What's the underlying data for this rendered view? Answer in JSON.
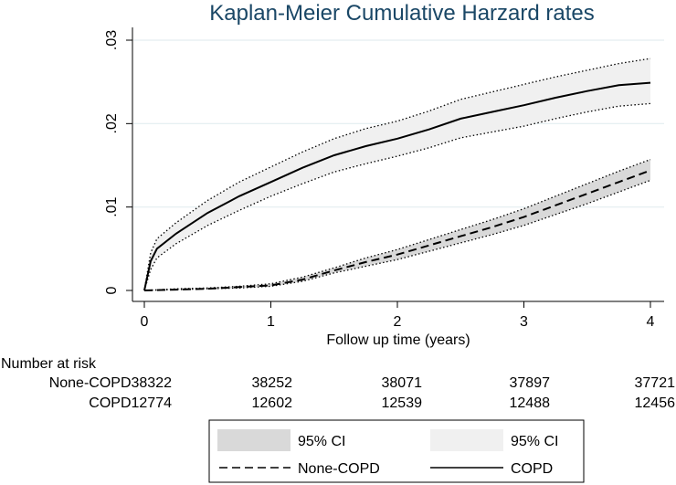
{
  "chart_data": {
    "type": "line",
    "title": "Kaplan-Meier Cumulative Harzard rates",
    "xlabel": "Follow up time (years)",
    "ylabel": "",
    "xlim": [
      0,
      4
    ],
    "ylim": [
      0,
      0.03
    ],
    "x_ticks": [
      0,
      1,
      2,
      3,
      4
    ],
    "x_tick_labels": [
      "0",
      "1",
      "2",
      "3",
      "4"
    ],
    "y_ticks": [
      0,
      0.01,
      0.02,
      0.03
    ],
    "y_tick_labels": [
      "0",
      ".01",
      ".02",
      ".03"
    ],
    "grid": "horizontal",
    "legend_position": "bottom",
    "series": [
      {
        "name": "None-COPD",
        "line_style": "dashed",
        "color": "#000000",
        "ci_color": "#d9d9d9",
        "x": [
          0,
          0.25,
          0.5,
          0.75,
          1.0,
          1.25,
          1.5,
          1.75,
          2.0,
          2.25,
          2.5,
          2.75,
          3.0,
          3.25,
          3.5,
          3.75,
          4.0
        ],
        "y": [
          0,
          0.0001,
          0.0002,
          0.0004,
          0.0006,
          0.0013,
          0.0024,
          0.0034,
          0.0043,
          0.0054,
          0.0065,
          0.0076,
          0.0088,
          0.0102,
          0.0116,
          0.013,
          0.0144
        ],
        "lower": [
          0,
          0.0001,
          0.0002,
          0.0003,
          0.0005,
          0.0011,
          0.0021,
          0.0029,
          0.0037,
          0.0047,
          0.0057,
          0.0067,
          0.0078,
          0.0091,
          0.0104,
          0.0118,
          0.0132
        ],
        "upper": [
          0,
          0.0002,
          0.0003,
          0.0005,
          0.0008,
          0.0016,
          0.0027,
          0.0039,
          0.0049,
          0.0061,
          0.0073,
          0.0085,
          0.0098,
          0.0113,
          0.0128,
          0.0143,
          0.0157
        ]
      },
      {
        "name": "COPD",
        "line_style": "solid",
        "color": "#000000",
        "ci_color": "#f0f0f0",
        "x": [
          0,
          0.05,
          0.1,
          0.25,
          0.5,
          0.75,
          1.0,
          1.25,
          1.5,
          1.75,
          2.0,
          2.25,
          2.5,
          2.75,
          3.0,
          3.25,
          3.5,
          3.75,
          4.0
        ],
        "y": [
          0,
          0.0035,
          0.005,
          0.0068,
          0.0093,
          0.0113,
          0.013,
          0.0147,
          0.0162,
          0.0173,
          0.0182,
          0.0193,
          0.0206,
          0.0214,
          0.0222,
          0.0231,
          0.0239,
          0.0246,
          0.0249
        ],
        "lower": [
          0,
          0.0025,
          0.0039,
          0.0056,
          0.0078,
          0.0096,
          0.0113,
          0.0128,
          0.0142,
          0.0152,
          0.0161,
          0.0171,
          0.0183,
          0.019,
          0.0197,
          0.0206,
          0.0214,
          0.0221,
          0.0224
        ],
        "upper": [
          0,
          0.0045,
          0.0062,
          0.0081,
          0.0108,
          0.013,
          0.0148,
          0.0166,
          0.0182,
          0.0194,
          0.0203,
          0.0215,
          0.0229,
          0.0238,
          0.0247,
          0.0256,
          0.0264,
          0.0272,
          0.0278
        ]
      }
    ]
  },
  "risk_table": {
    "title": "Number at risk",
    "rows": [
      {
        "group": "None-COPD",
        "values": [
          "38322",
          "38252",
          "38071",
          "37897",
          "37721"
        ]
      },
      {
        "group": "COPD",
        "values": [
          "12774",
          "12602",
          "12539",
          "12488",
          "12456"
        ]
      }
    ]
  },
  "legend": {
    "items": [
      {
        "label": "95% CI",
        "kind": "area",
        "color": "#d9d9d9"
      },
      {
        "label": "95% CI",
        "kind": "area",
        "color": "#f0f0f0"
      },
      {
        "label": "None-COPD",
        "kind": "dashed-line"
      },
      {
        "label": "COPD",
        "kind": "solid-line"
      }
    ]
  }
}
